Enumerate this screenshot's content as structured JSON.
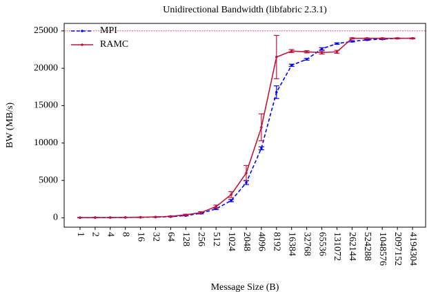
{
  "chart_data": {
    "type": "line",
    "title": "Unidirectional Bandwidth (libfabric 2.3.1)",
    "xlabel": "Message Size (B)",
    "ylabel": "BW (MB/s)",
    "categories": [
      "1",
      "2",
      "4",
      "8",
      "16",
      "32",
      "64",
      "128",
      "256",
      "512",
      "1024",
      "2048",
      "4096",
      "8192",
      "16384",
      "32768",
      "65536",
      "131072",
      "262144",
      "524288",
      "1048576",
      "2097152",
      "4194304"
    ],
    "series": [
      {
        "name": "MPI",
        "color": "#0000ff",
        "dash": true,
        "values": [
          20,
          30,
          40,
          50,
          60,
          100,
          150,
          300,
          600,
          1200,
          2300,
          4700,
          9300,
          16800,
          20400,
          21200,
          22600,
          23300,
          23600,
          23800,
          23900,
          24000,
          24000
        ],
        "errors": [
          20,
          20,
          20,
          20,
          20,
          20,
          30,
          50,
          80,
          100,
          150,
          250,
          200,
          850,
          150,
          120,
          150,
          100,
          80,
          60,
          60,
          60,
          60
        ]
      },
      {
        "name": "RAMC",
        "color": "#c0143c",
        "dash": false,
        "values": [
          20,
          30,
          40,
          60,
          80,
          120,
          200,
          400,
          700,
          1500,
          3100,
          6000,
          12100,
          21500,
          22300,
          22200,
          22100,
          22200,
          24000,
          24000,
          24000,
          24000,
          24000
        ],
        "errors": [
          20,
          20,
          20,
          20,
          20,
          30,
          50,
          80,
          120,
          200,
          400,
          1000,
          1800,
          2900,
          200,
          150,
          200,
          200,
          80,
          60,
          60,
          60,
          60
        ]
      }
    ],
    "reference_line": 25000,
    "reference_color": "#c0143c",
    "ylim": [
      -1250,
      26000
    ],
    "yticks": [
      0,
      5000,
      10000,
      15000,
      20000,
      25000
    ],
    "legend": "upper left"
  }
}
